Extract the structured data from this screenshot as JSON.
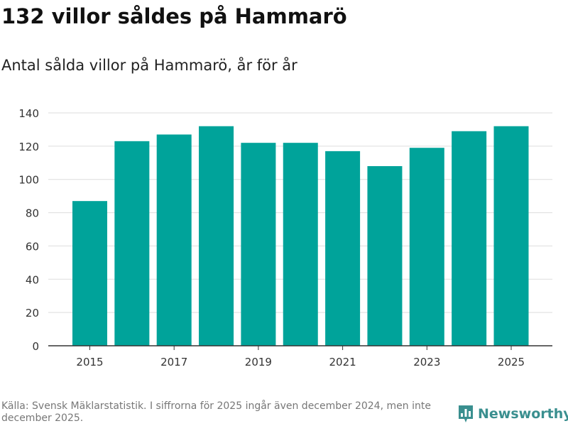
{
  "title": "132 villor såldes på Hammarö",
  "subtitle": "Antal sålda villor på Hammarö, år för år",
  "source": "Källa: Svensk Mäklarstatistik. I siffrorna för 2025 ingår även december 2024, men inte december 2025.",
  "brand": "Newsworthy",
  "colors": {
    "bar": "#00a39a",
    "grid": "#dddddd",
    "axis": "#333333",
    "brand": "#3a8f8f"
  },
  "chart_data": {
    "type": "bar",
    "categories": [
      "2015",
      "2016",
      "2017",
      "2018",
      "2019",
      "2020",
      "2021",
      "2022",
      "2023",
      "2024",
      "2025"
    ],
    "values": [
      87,
      123,
      127,
      132,
      122,
      122,
      117,
      108,
      119,
      129,
      132
    ],
    "x_tick_labels": [
      "2015",
      "2017",
      "2019",
      "2021",
      "2023",
      "2025"
    ],
    "y_ticks": [
      0,
      20,
      40,
      60,
      80,
      100,
      120,
      140
    ],
    "ylim": [
      0,
      140
    ],
    "grid": true,
    "legend": false
  }
}
